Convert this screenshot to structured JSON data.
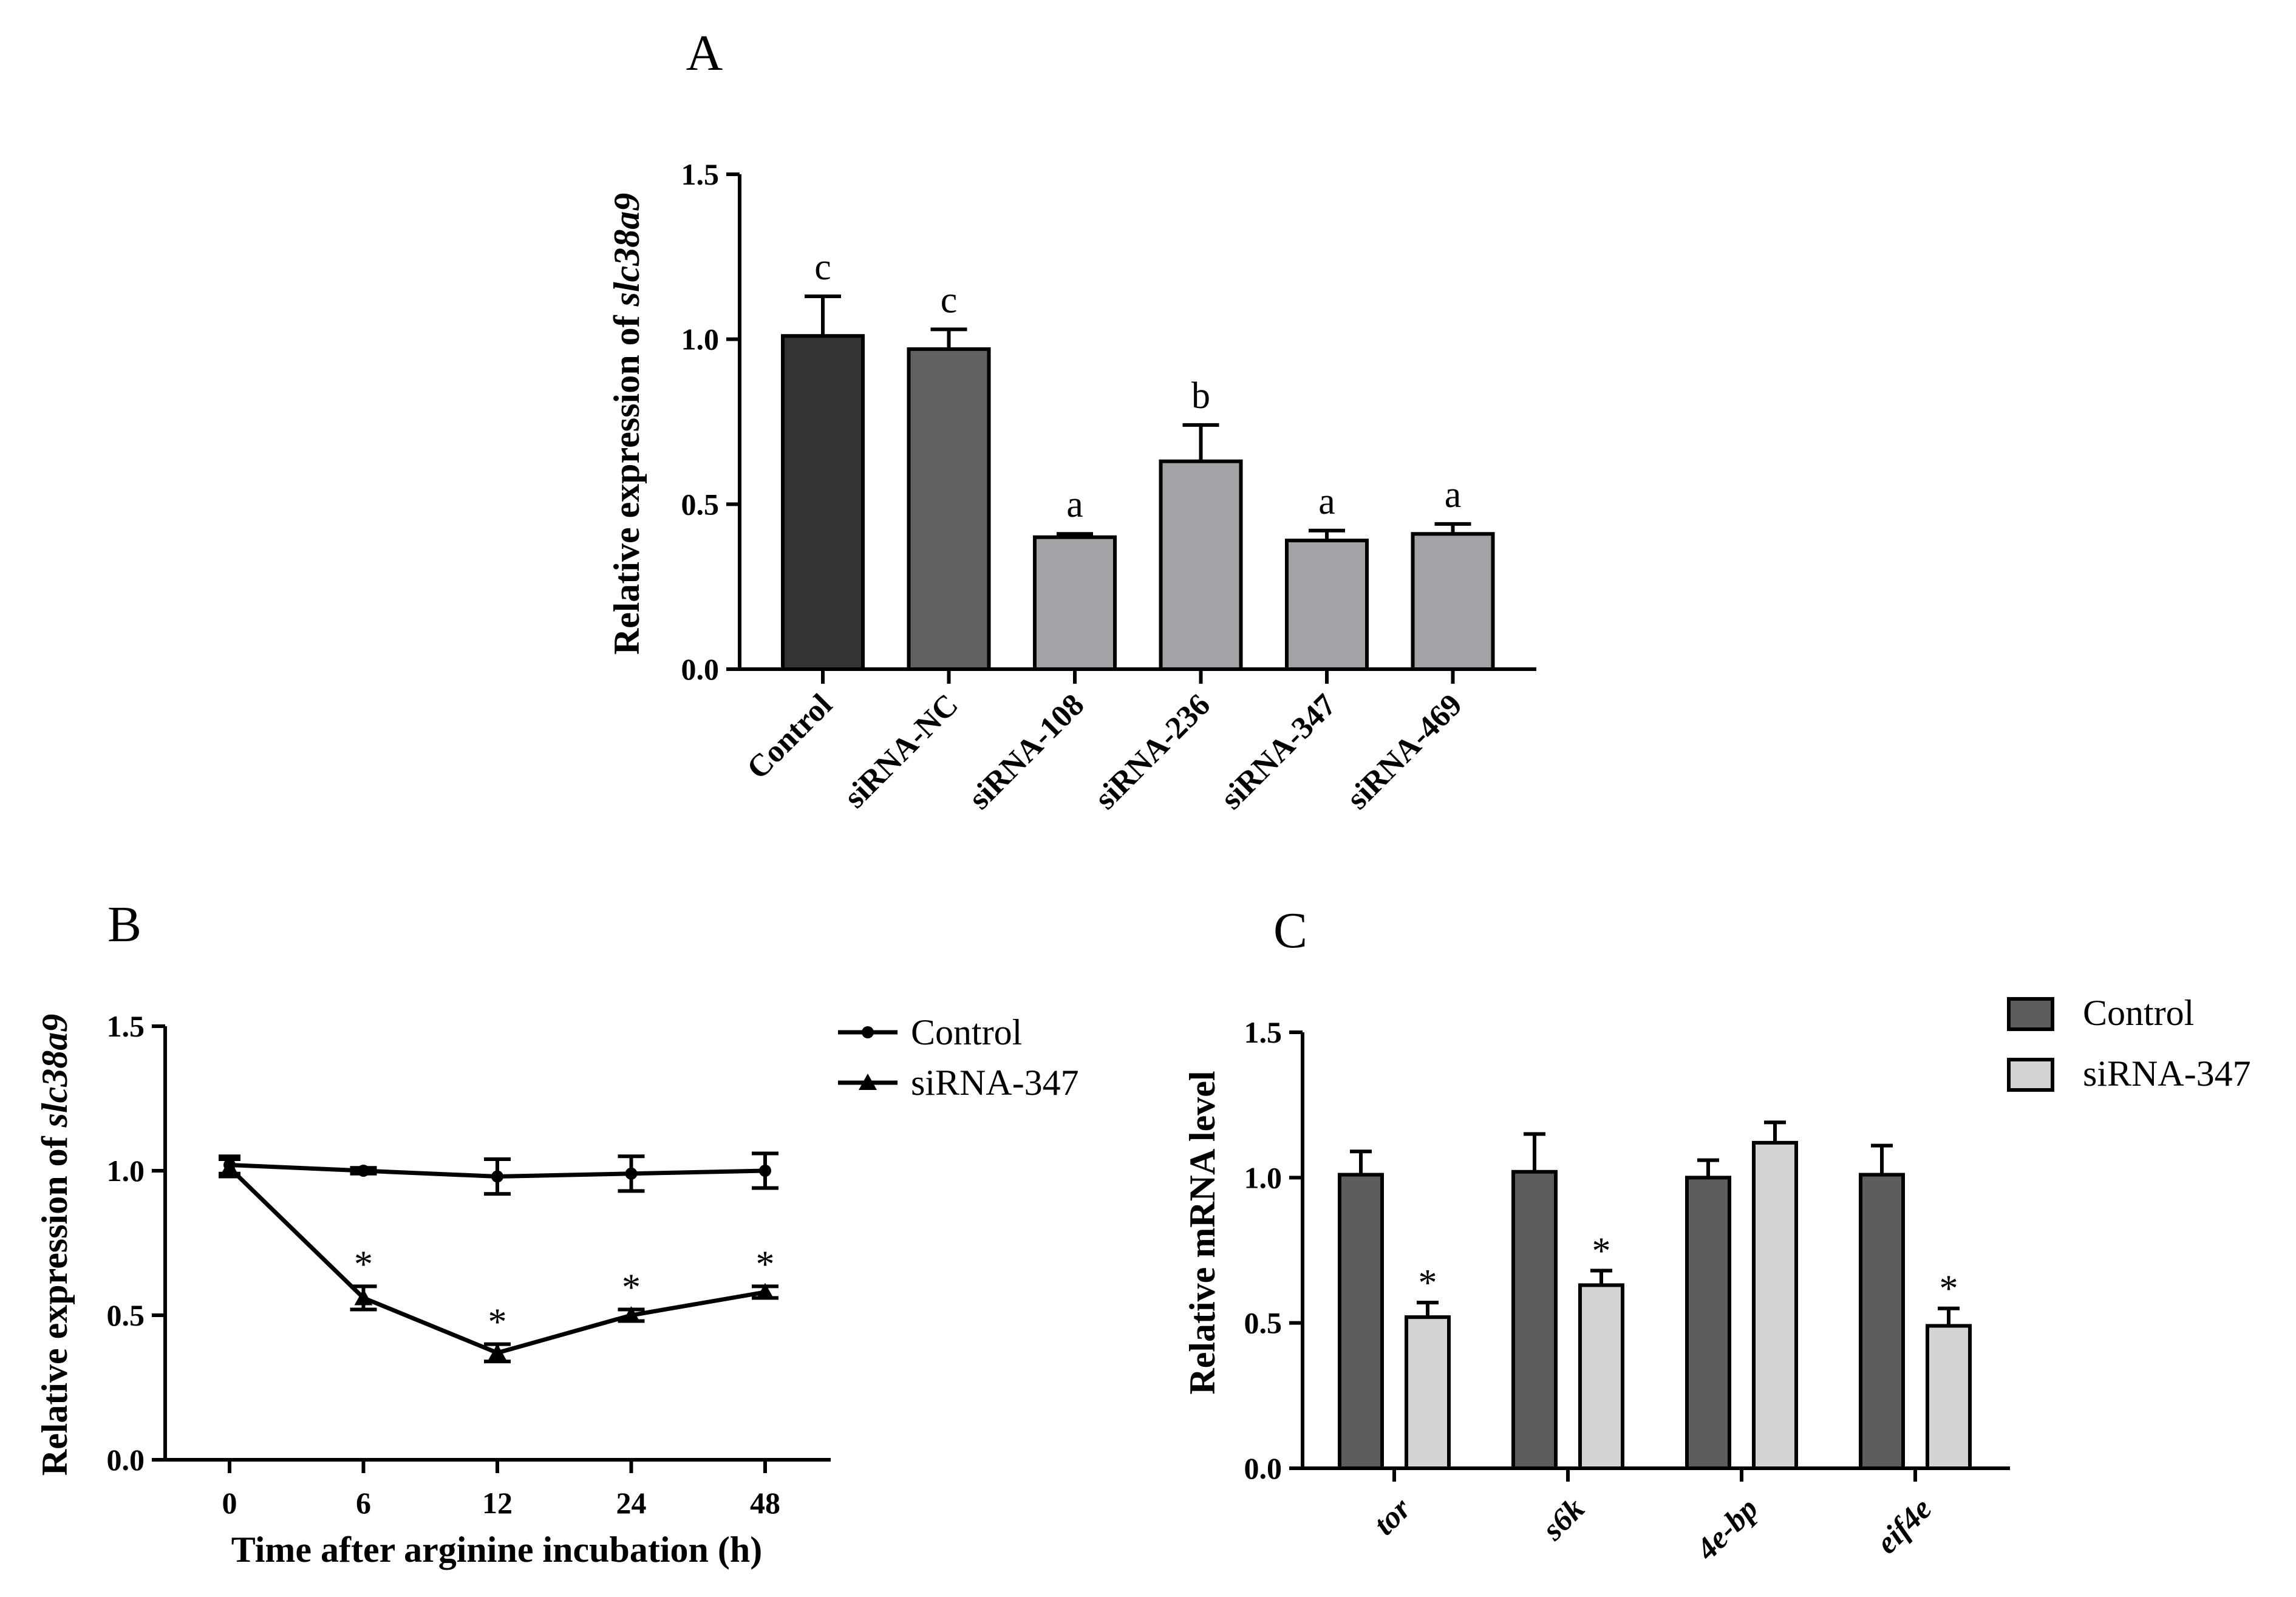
{
  "chart_data": [
    {
      "panel": "A",
      "type": "bar",
      "ylabel_prefix": "Relative expression of ",
      "ylabel_gene": "slc38a9",
      "xlabel": "",
      "ylim": [
        0,
        1.5
      ],
      "yticks": [
        "0.0",
        "0.5",
        "1.0",
        "1.5"
      ],
      "categories": [
        "Control",
        "siRNA-NC",
        "siRNA-108",
        "siRNA-236",
        "siRNA-347",
        "siRNA-469"
      ],
      "values": [
        1.01,
        0.97,
        0.4,
        0.63,
        0.39,
        0.41
      ],
      "errors": [
        0.12,
        0.06,
        0.01,
        0.11,
        0.03,
        0.03
      ],
      "letters": [
        "c",
        "c",
        "a",
        "b",
        "a",
        "a"
      ],
      "colors": [
        "#333333",
        "#616161",
        "#a3a3a7",
        "#a3a3a7",
        "#a3a3a7",
        "#a3a3a7"
      ]
    },
    {
      "panel": "B",
      "type": "line",
      "ylabel_prefix": "Relative expression of ",
      "ylabel_gene": "slc38a9",
      "xlabel": "Time after arginine incubation (h)",
      "ylim": [
        0,
        1.5
      ],
      "yticks": [
        "0.0",
        "0.5",
        "1.0",
        "1.5"
      ],
      "x": [
        "0",
        "6",
        "12",
        "24",
        "48"
      ],
      "series": [
        {
          "name": "Control",
          "marker": "circle",
          "values": [
            1.02,
            1.0,
            0.98,
            0.99,
            1.0
          ],
          "errors": [
            0.03,
            0.01,
            0.06,
            0.06,
            0.06
          ],
          "stars": [
            "",
            "",
            "",
            "",
            ""
          ]
        },
        {
          "name": "siRNA-347",
          "marker": "triangle",
          "values": [
            1.01,
            0.56,
            0.37,
            0.5,
            0.58
          ],
          "errors": [
            0.03,
            0.04,
            0.03,
            0.02,
            0.02
          ],
          "stars": [
            "",
            "*",
            "*",
            "*",
            "*"
          ]
        }
      ]
    },
    {
      "panel": "C",
      "type": "bar",
      "ylabel": "Relative mRNA level",
      "xlabel": "",
      "ylim": [
        0,
        1.5
      ],
      "yticks": [
        "0.0",
        "0.5",
        "1.0",
        "1.5"
      ],
      "categories": [
        "tor",
        "s6k",
        "4e-bp",
        "eif4e"
      ],
      "series": [
        {
          "name": "Control",
          "color": "#5d5d5d",
          "values": [
            1.01,
            1.02,
            1.0,
            1.01
          ],
          "errors": [
            0.08,
            0.13,
            0.06,
            0.1
          ],
          "stars": [
            "",
            "",
            "",
            ""
          ]
        },
        {
          "name": "siRNA-347",
          "color": "#d4d4d4",
          "values": [
            0.52,
            0.63,
            1.12,
            0.49
          ],
          "errors": [
            0.05,
            0.05,
            0.07,
            0.06
          ],
          "stars": [
            "*",
            "*",
            "",
            "*"
          ]
        }
      ]
    }
  ]
}
